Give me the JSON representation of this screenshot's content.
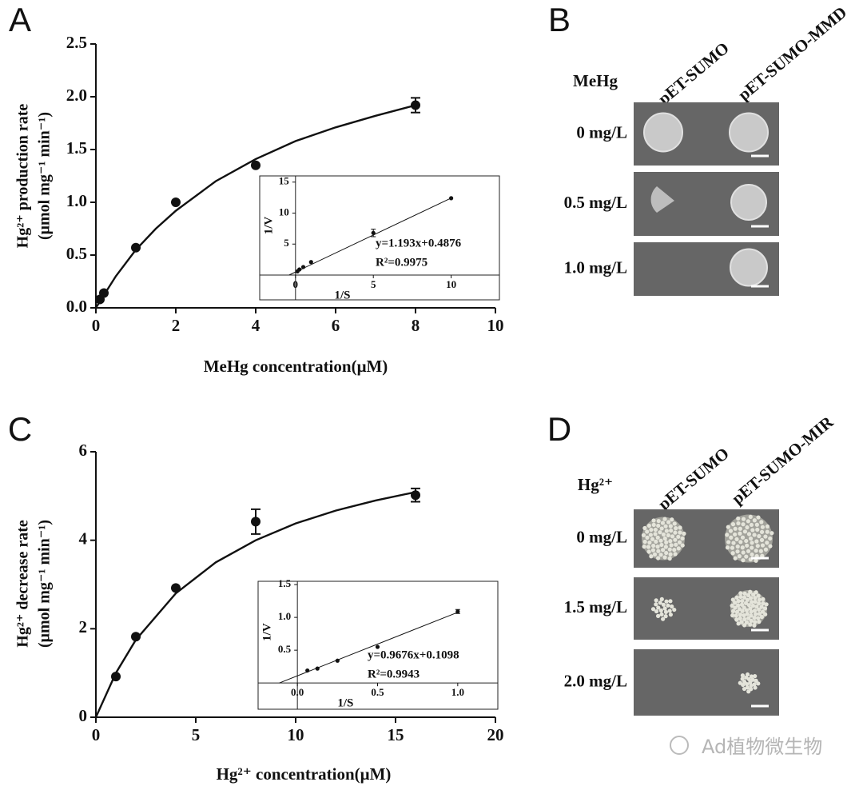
{
  "chart_data": [
    {
      "type": "scatter",
      "label": "A",
      "xlabel": "MeHg concentration(μM)",
      "ylabel": [
        "Hg²⁺ production rate",
        "(μmol mg⁻¹ min⁻¹)"
      ],
      "x": [
        0.1,
        0.2,
        1,
        2,
        4,
        8
      ],
      "values": [
        0.08,
        0.14,
        0.57,
        1.0,
        1.35,
        1.92
      ],
      "errors": [
        null,
        null,
        null,
        null,
        null,
        0.07
      ],
      "fit_x": [
        0,
        0.5,
        1,
        1.5,
        2,
        3,
        4,
        5,
        6,
        7,
        8
      ],
      "fit_values": [
        0,
        0.3,
        0.55,
        0.75,
        0.92,
        1.2,
        1.41,
        1.58,
        1.71,
        1.82,
        1.92
      ],
      "xlim": [
        0,
        10
      ],
      "ylim": [
        0,
        2.5
      ],
      "xticks": [
        0,
        2,
        4,
        6,
        8,
        10
      ],
      "yticks": [
        {
          "value": 0,
          "label": "0.0"
        },
        {
          "value": 0.5,
          "label": "0.5"
        },
        {
          "value": 1,
          "label": "1.0"
        },
        {
          "value": 1.5,
          "label": "1.5"
        },
        {
          "value": 2,
          "label": "2.0"
        },
        {
          "value": 2.5,
          "label": "2.5"
        }
      ]
    },
    {
      "type": "scatter",
      "xlabel": "1/S",
      "ylabel": "1/V",
      "equation": "y=1.193x+0.4876",
      "r2": "R²=0.9975",
      "x": [
        10,
        5,
        1,
        0.5,
        0.25,
        0.125
      ],
      "values": [
        12.4,
        6.8,
        2.1,
        1.3,
        0.9,
        0.6
      ],
      "errors": [
        null,
        0.6,
        null,
        null,
        null,
        null
      ],
      "fit_x": [
        -0.41,
        10
      ],
      "fit_values": [
        0,
        12.42
      ],
      "xlim": [
        -2.3,
        13.1
      ],
      "ylim": [
        -4,
        16
      ],
      "xticks": [
        0,
        5,
        10
      ],
      "yticks": [
        5,
        10,
        15
      ]
    },
    {
      "type": "scatter",
      "label": "C",
      "xlabel": "Hg²⁺ concentration(μM)",
      "ylabel": [
        "Hg²⁺ decrease rate",
        "(μmol mg⁻¹ min⁻¹)"
      ],
      "x": [
        1,
        2,
        4,
        8,
        16
      ],
      "values": [
        0.92,
        1.82,
        2.92,
        4.42,
        5.02
      ],
      "errors": [
        null,
        null,
        null,
        0.28,
        0.15
      ],
      "fit_x": [
        0,
        1,
        2,
        4,
        6,
        8,
        10,
        12,
        14,
        16
      ],
      "fit_values": [
        0,
        1.0,
        1.75,
        2.8,
        3.5,
        4.0,
        4.38,
        4.67,
        4.9,
        5.09
      ],
      "xlim": [
        0,
        20
      ],
      "ylim": [
        0,
        6
      ],
      "xticks": [
        0,
        5,
        10,
        15,
        20
      ],
      "yticks": [
        0,
        2,
        4,
        6
      ]
    },
    {
      "type": "scatter",
      "xlabel": "1/S",
      "ylabel": "1/V",
      "equation": "y=0.9676x+0.1098",
      "r2": "R²=0.9943",
      "x": [
        1,
        0.5,
        0.25,
        0.125,
        0.0625
      ],
      "values": [
        1.09,
        0.55,
        0.34,
        0.22,
        0.19
      ],
      "errors": [
        0.03,
        null,
        null,
        null,
        null
      ],
      "fit_x": [
        -0.113,
        1
      ],
      "fit_values": [
        0,
        1.077
      ],
      "xlim": [
        -0.245,
        1.25
      ],
      "ylim": [
        -0.4,
        1.55
      ],
      "xticks": [
        {
          "value": 0,
          "label": "0.0"
        },
        {
          "value": 0.5,
          "label": "0.5"
        },
        {
          "value": 1,
          "label": "1.0"
        }
      ],
      "yticks": [
        {
          "value": 0.5,
          "label": "0.5"
        },
        {
          "value": 1,
          "label": "1.0"
        },
        {
          "value": 1.5,
          "label": "1.5"
        }
      ]
    }
  ],
  "photo_panels": [
    {
      "label": "B",
      "treatment": "MeHg",
      "columns": [
        "pET-SUMO",
        "pET-SUMO-MMD"
      ],
      "rows": [
        "0 mg/L",
        "0.5 mg/L",
        "1.0 mg/L"
      ]
    },
    {
      "label": "D",
      "treatment": "Hg²⁺",
      "columns": [
        "pET-SUMO",
        "pET-SUMO-MIR"
      ],
      "rows": [
        "0 mg/L",
        "1.5 mg/L",
        "2.0 mg/L"
      ]
    }
  ],
  "watermark": "Ad植物微生物"
}
